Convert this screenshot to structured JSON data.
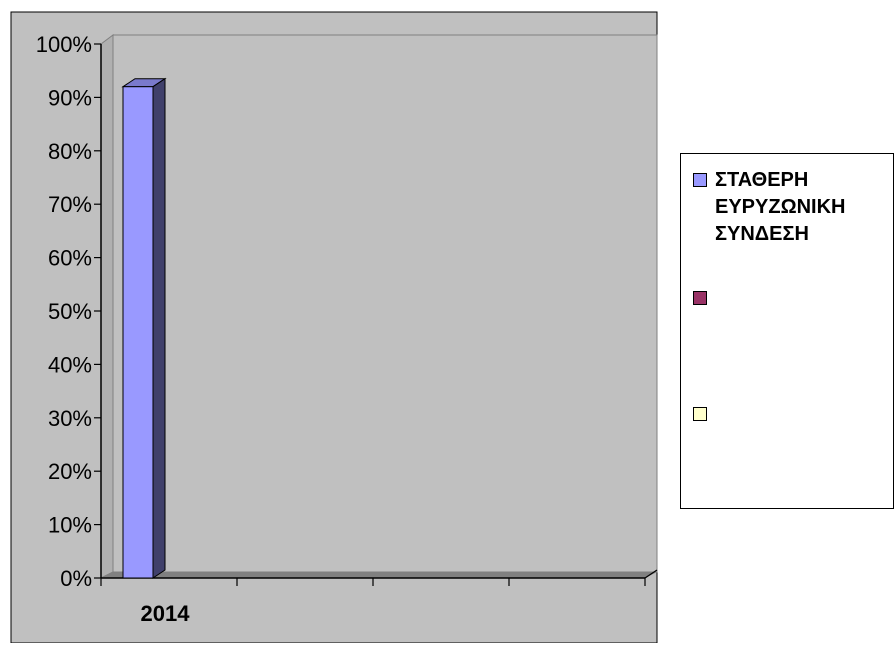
{
  "chart_data": {
    "type": "bar",
    "style": "3d-column",
    "categories": [
      "2014",
      "",
      "",
      ""
    ],
    "series": [
      {
        "name": "ΣΤΑΘΕΡΗ ΕΥΡΥΖΩΝΙΚΗ ΣΥΝΔΕΣΗ",
        "color": "#9999ff",
        "values": [
          92,
          null,
          null,
          null
        ]
      },
      {
        "name": "",
        "color": "#993366",
        "values": [
          null,
          null,
          null,
          null
        ]
      },
      {
        "name": "",
        "color": "#ffffcc",
        "values": [
          null,
          null,
          null,
          null
        ]
      }
    ],
    "yticks": [
      "0%",
      "10%",
      "20%",
      "30%",
      "40%",
      "50%",
      "60%",
      "70%",
      "80%",
      "90%",
      "100%"
    ],
    "ylim": [
      0,
      100
    ],
    "grid": false,
    "legend": "right",
    "colors": {
      "plot_background": "#c0c0c0",
      "chart_background": "#c0c0c0",
      "floor": "#808080",
      "axis": "#000000"
    }
  }
}
